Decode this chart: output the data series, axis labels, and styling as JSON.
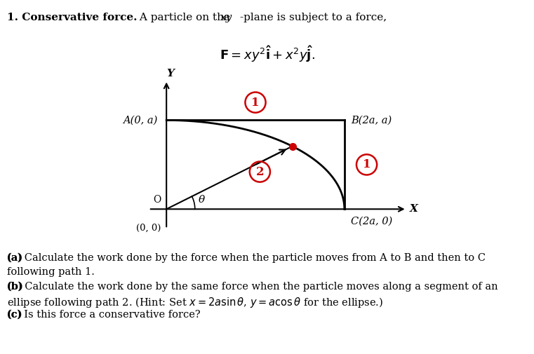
{
  "bg_color": "#ffffff",
  "text_color": "#000000",
  "red_color": "#cc0000",
  "label_A": "A(0, a)",
  "label_B": "B(2a, a)",
  "label_C": "C(2a, 0)",
  "label_O": "O",
  "label_00": "(0, 0)",
  "label_X": "X",
  "label_Y": "Y",
  "label_theta": "θ"
}
